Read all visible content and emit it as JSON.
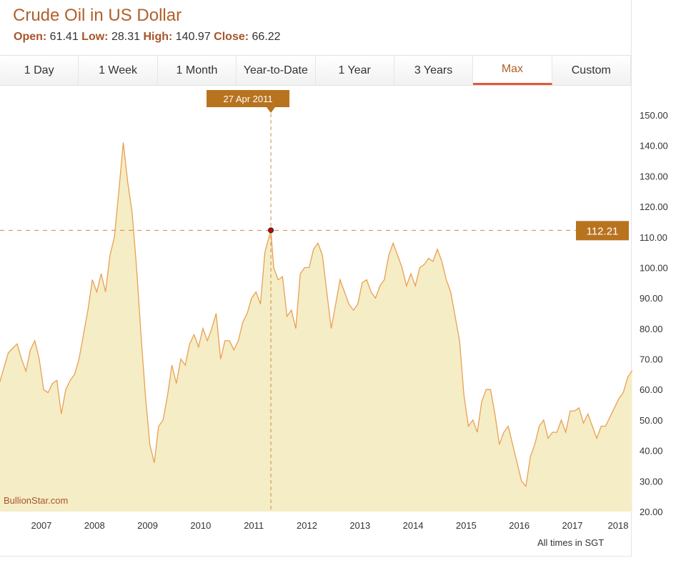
{
  "header": {
    "title": "Crude Oil in US Dollar",
    "stats": [
      {
        "label": "Open:",
        "value": "61.41"
      },
      {
        "label": "Low:",
        "value": "28.31"
      },
      {
        "label": "High:",
        "value": "140.97"
      },
      {
        "label": "Close:",
        "value": "66.22"
      }
    ]
  },
  "tabs": [
    {
      "label": "1 Day"
    },
    {
      "label": "1 Week"
    },
    {
      "label": "1 Month"
    },
    {
      "label": "Year-to-Date"
    },
    {
      "label": "1 Year"
    },
    {
      "label": "3 Years"
    },
    {
      "label": "Max",
      "active": true
    },
    {
      "label": "Custom"
    }
  ],
  "footer": {
    "note": "All times in SGT",
    "brand": "BullionStar.com"
  },
  "colors": {
    "accent": "#b8731f",
    "line": "#e9a052",
    "fill": "#f5edc6",
    "title": "#b0602a"
  },
  "chart_data": {
    "type": "area",
    "xlim": [
      "2006-03",
      "2018-02"
    ],
    "ylim": [
      20,
      150
    ],
    "yticks": [
      "20.00",
      "30.00",
      "40.00",
      "50.00",
      "60.00",
      "70.00",
      "80.00",
      "90.00",
      "100.00",
      "110.00",
      "120.00",
      "130.00",
      "140.00",
      "150.00"
    ],
    "xticks": [
      "2007",
      "2008",
      "2009",
      "2010",
      "2011",
      "2012",
      "2013",
      "2014",
      "2015",
      "2016",
      "2017",
      "2018"
    ],
    "crosshair": {
      "date_label": "27 Apr 2011",
      "date": "2011-04-27",
      "value_label": "112.21",
      "value": 112.21
    },
    "points": [
      [
        "2006-03",
        62
      ],
      [
        "2006-05",
        72
      ],
      [
        "2006-07",
        75
      ],
      [
        "2006-08",
        70
      ],
      [
        "2006-09",
        66
      ],
      [
        "2006-10",
        73
      ],
      [
        "2006-11",
        76
      ],
      [
        "2006-12",
        70
      ],
      [
        "2007-01",
        60
      ],
      [
        "2007-02",
        59
      ],
      [
        "2007-03",
        62
      ],
      [
        "2007-04",
        63
      ],
      [
        "2007-05",
        52
      ],
      [
        "2007-06",
        60
      ],
      [
        "2007-07",
        63
      ],
      [
        "2007-08",
        65
      ],
      [
        "2007-09",
        70
      ],
      [
        "2007-10",
        78
      ],
      [
        "2007-11",
        86
      ],
      [
        "2007-12",
        96
      ],
      [
        "2008-01",
        92
      ],
      [
        "2008-02",
        98
      ],
      [
        "2008-03",
        92
      ],
      [
        "2008-04",
        104
      ],
      [
        "2008-05",
        110
      ],
      [
        "2008-06",
        125
      ],
      [
        "2008-07",
        141
      ],
      [
        "2008-08",
        128
      ],
      [
        "2008-09",
        118
      ],
      [
        "2008-10",
        100
      ],
      [
        "2008-11",
        78
      ],
      [
        "2008-12",
        58
      ],
      [
        "2009-01",
        42
      ],
      [
        "2009-02",
        36
      ],
      [
        "2009-03",
        48
      ],
      [
        "2009-04",
        50
      ],
      [
        "2009-05",
        58
      ],
      [
        "2009-06",
        68
      ],
      [
        "2009-07",
        62
      ],
      [
        "2009-08",
        70
      ],
      [
        "2009-09",
        68
      ],
      [
        "2009-10",
        75
      ],
      [
        "2009-11",
        78
      ],
      [
        "2009-12",
        74
      ],
      [
        "2010-01",
        80
      ],
      [
        "2010-02",
        76
      ],
      [
        "2010-03",
        80
      ],
      [
        "2010-04",
        85
      ],
      [
        "2010-05",
        70
      ],
      [
        "2010-06",
        76
      ],
      [
        "2010-07",
        76
      ],
      [
        "2010-08",
        73
      ],
      [
        "2010-09",
        76
      ],
      [
        "2010-10",
        82
      ],
      [
        "2010-11",
        85
      ],
      [
        "2010-12",
        90
      ],
      [
        "2011-01",
        92
      ],
      [
        "2011-02",
        88
      ],
      [
        "2011-03",
        105
      ],
      [
        "2011-04-27",
        112.21
      ],
      [
        "2011-05",
        100
      ],
      [
        "2011-06",
        96
      ],
      [
        "2011-07",
        97
      ],
      [
        "2011-08",
        84
      ],
      [
        "2011-09",
        86
      ],
      [
        "2011-10",
        80
      ],
      [
        "2011-11",
        98
      ],
      [
        "2011-12",
        100
      ],
      [
        "2012-01",
        100
      ],
      [
        "2012-02",
        106
      ],
      [
        "2012-03",
        108
      ],
      [
        "2012-04",
        104
      ],
      [
        "2012-05",
        92
      ],
      [
        "2012-06",
        80
      ],
      [
        "2012-07",
        88
      ],
      [
        "2012-08",
        96
      ],
      [
        "2012-09",
        92
      ],
      [
        "2012-10",
        88
      ],
      [
        "2012-11",
        86
      ],
      [
        "2012-12",
        88
      ],
      [
        "2013-01",
        95
      ],
      [
        "2013-02",
        96
      ],
      [
        "2013-03",
        92
      ],
      [
        "2013-04",
        90
      ],
      [
        "2013-05",
        94
      ],
      [
        "2013-06",
        96
      ],
      [
        "2013-07",
        104
      ],
      [
        "2013-08",
        108
      ],
      [
        "2013-09",
        104
      ],
      [
        "2013-10",
        100
      ],
      [
        "2013-11",
        94
      ],
      [
        "2013-12",
        98
      ],
      [
        "2014-01",
        94
      ],
      [
        "2014-02",
        100
      ],
      [
        "2014-03",
        101
      ],
      [
        "2014-04",
        103
      ],
      [
        "2014-05",
        102
      ],
      [
        "2014-06",
        106
      ],
      [
        "2014-07",
        102
      ],
      [
        "2014-08",
        96
      ],
      [
        "2014-09",
        92
      ],
      [
        "2014-10",
        84
      ],
      [
        "2014-11",
        76
      ],
      [
        "2014-12",
        58
      ],
      [
        "2015-01",
        48
      ],
      [
        "2015-02",
        50
      ],
      [
        "2015-03",
        46
      ],
      [
        "2015-04",
        56
      ],
      [
        "2015-05",
        60
      ],
      [
        "2015-06",
        60
      ],
      [
        "2015-07",
        52
      ],
      [
        "2015-08",
        42
      ],
      [
        "2015-09",
        46
      ],
      [
        "2015-10",
        48
      ],
      [
        "2015-11",
        42
      ],
      [
        "2015-12",
        36
      ],
      [
        "2016-01",
        30
      ],
      [
        "2016-02",
        28.31
      ],
      [
        "2016-03",
        38
      ],
      [
        "2016-04",
        42
      ],
      [
        "2016-05",
        48
      ],
      [
        "2016-06",
        50
      ],
      [
        "2016-07",
        44
      ],
      [
        "2016-08",
        46
      ],
      [
        "2016-09",
        46
      ],
      [
        "2016-10",
        50
      ],
      [
        "2016-11",
        46
      ],
      [
        "2016-12",
        53
      ],
      [
        "2017-01",
        53
      ],
      [
        "2017-02",
        54
      ],
      [
        "2017-03",
        49
      ],
      [
        "2017-04",
        52
      ],
      [
        "2017-05",
        48
      ],
      [
        "2017-06",
        44
      ],
      [
        "2017-07",
        48
      ],
      [
        "2017-08",
        48
      ],
      [
        "2017-09",
        51
      ],
      [
        "2017-10",
        54
      ],
      [
        "2017-11",
        57
      ],
      [
        "2017-12",
        59
      ],
      [
        "2018-01",
        64
      ],
      [
        "2018-02",
        66.22
      ]
    ]
  }
}
